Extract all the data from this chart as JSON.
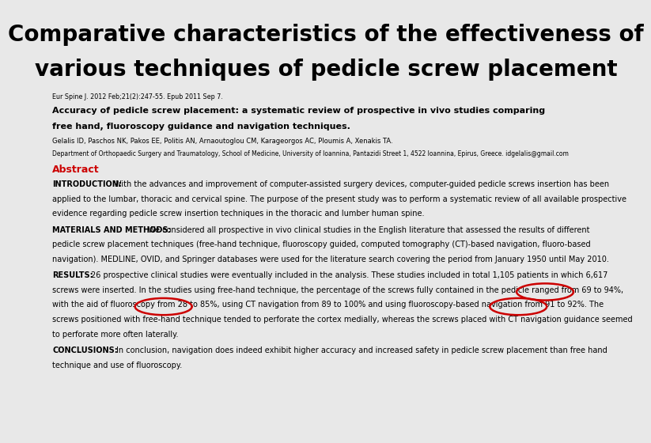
{
  "title_line1": "Comparative characteristics of the effectiveness of",
  "title_line2": "various techniques of pedicle screw placement",
  "title_fontsize": 20,
  "title_color": "#000000",
  "title_bg": "#e8e8e8",
  "content_bg": "#ffffff",
  "journal_ref": "Eur Spine J. 2012 Feb;21(2):247-55. Epub 2011 Sep 7.",
  "article_title_line1": "Accuracy of pedicle screw placement: a systematic review of prospective in vivo studies comparing",
  "article_title_line2": "free hand, fluoroscopy guidance and navigation techniques.",
  "authors": "Gelalis ID, Paschos NK, Pakos EE, Politis AN, Arnaoutoglou CM, Karageorgos AC, Ploumis A, Xenakis TA.",
  "affiliation": "Department of Orthopaedic Surgery and Traumatology, School of Medicine, University of Ioannina, Pantazidi Street 1, 4522 Ioannina, Epirus, Greece. idgelalis@gmail.com",
  "abstract_label": "Abstract",
  "intro_label": "INTRODUCTION:",
  "intro_lines": [
    "With the advances and improvement of computer-assisted surgery devices, computer-guided pedicle screws insertion has been",
    "applied to the lumbar, thoracic and cervical spine. The purpose of the present study was to perform a systematic review of all available prospective",
    "evidence regarding pedicle screw insertion techniques in the thoracic and lumber human spine."
  ],
  "methods_label": "MATERIALS AND METHODS:",
  "methods_lines": [
    "We considered all prospective in vivo clinical studies in the English literature that assessed the results of different",
    "pedicle screw placement techniques (free-hand technique, fluoroscopy guided, computed tomography (CT)-based navigation, fluoro-based",
    "navigation). MEDLINE, OVID, and Springer databases were used for the literature search covering the period from January 1950 until May 2010."
  ],
  "results_label": "RESULTS:",
  "results_lines": [
    "26 prospective clinical studies were eventually included in the analysis. These studies included in total 1,105 patients in which 6,617",
    "screws were inserted. In the studies using free-hand technique, the percentage of the screws fully contained in the pedicle ranged from 69 to 94%,",
    "with the aid of fluoroscopy from 28 to 85%, using CT navigation from 89 to 100% and using fluoroscopy-based navigation from 91 to 92%. The",
    "screws positioned with free-hand technique tended to perforate the cortex medially, whereas the screws placed with CT navigation guidance seemed",
    "to perforate more often laterally."
  ],
  "conclusions_label": "CONCLUSIONS:",
  "conclusions_lines": [
    "In conclusion, navigation does indeed exhibit higher accuracy and increased safety in pedicle screw placement than free hand",
    "technique and use of fluoroscopy."
  ],
  "circle_color": "#cc0000",
  "abstract_color": "#cc0000",
  "body_fontsize": 7.0
}
